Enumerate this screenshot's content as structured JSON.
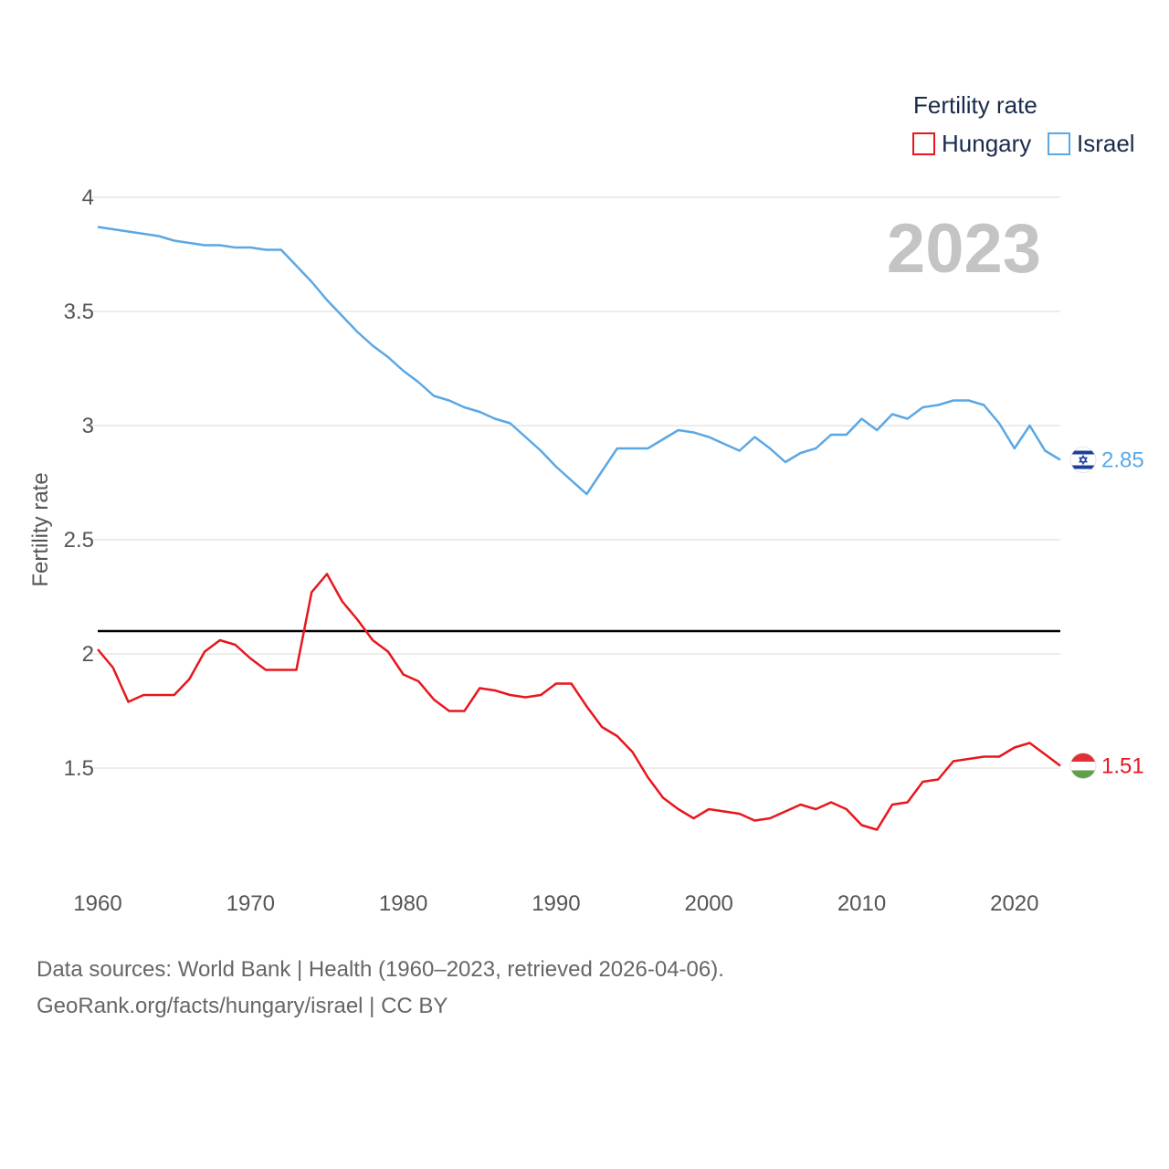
{
  "chart_data": {
    "type": "line",
    "ylabel": "Fertility rate",
    "xlabel": "",
    "ylim": [
      1.0,
      4.0
    ],
    "xlim": [
      1960,
      2023
    ],
    "y_ticks": [
      "1.5",
      "2",
      "2.5",
      "3",
      "3.5",
      "4"
    ],
    "y_tick_values": [
      1.5,
      2,
      2.5,
      3,
      3.5,
      4
    ],
    "x_ticks": [
      "1960",
      "1970",
      "1980",
      "1990",
      "2000",
      "2010",
      "2020"
    ],
    "x_tick_values": [
      1960,
      1970,
      1980,
      1990,
      2000,
      2010,
      2020
    ],
    "legend_title": "Fertility rate",
    "year_label": "2023",
    "reference_line": 2.1,
    "x": [
      1960,
      1961,
      1962,
      1963,
      1964,
      1965,
      1966,
      1967,
      1968,
      1969,
      1970,
      1971,
      1972,
      1973,
      1974,
      1975,
      1976,
      1977,
      1978,
      1979,
      1980,
      1981,
      1982,
      1983,
      1984,
      1985,
      1986,
      1987,
      1988,
      1989,
      1990,
      1991,
      1992,
      1993,
      1994,
      1995,
      1996,
      1997,
      1998,
      1999,
      2000,
      2001,
      2002,
      2003,
      2004,
      2005,
      2006,
      2007,
      2008,
      2009,
      2010,
      2011,
      2012,
      2013,
      2014,
      2015,
      2016,
      2017,
      2018,
      2019,
      2020,
      2021,
      2022,
      2023
    ],
    "series": [
      {
        "name": "Hungary",
        "color": "#e8161d",
        "end_label": "1.51",
        "flag": "hungary-flag",
        "values": [
          2.02,
          1.94,
          1.79,
          1.82,
          1.82,
          1.82,
          1.89,
          2.01,
          2.06,
          2.04,
          1.98,
          1.93,
          1.93,
          1.93,
          2.27,
          2.35,
          2.23,
          2.15,
          2.06,
          2.01,
          1.91,
          1.88,
          1.8,
          1.75,
          1.75,
          1.85,
          1.84,
          1.82,
          1.81,
          1.82,
          1.87,
          1.87,
          1.77,
          1.68,
          1.64,
          1.57,
          1.46,
          1.37,
          1.32,
          1.28,
          1.32,
          1.31,
          1.3,
          1.27,
          1.28,
          1.31,
          1.34,
          1.32,
          1.35,
          1.32,
          1.25,
          1.23,
          1.34,
          1.35,
          1.44,
          1.45,
          1.53,
          1.54,
          1.55,
          1.55,
          1.59,
          1.61,
          1.56,
          1.51
        ]
      },
      {
        "name": "Israel",
        "color": "#5ba7e4",
        "end_label": "2.85",
        "flag": "israel-flag",
        "values": [
          3.87,
          3.86,
          3.85,
          3.84,
          3.83,
          3.81,
          3.8,
          3.79,
          3.79,
          3.78,
          3.78,
          3.77,
          3.77,
          3.7,
          3.63,
          3.55,
          3.48,
          3.41,
          3.35,
          3.3,
          3.24,
          3.19,
          3.13,
          3.11,
          3.08,
          3.06,
          3.03,
          3.01,
          2.95,
          2.89,
          2.82,
          2.76,
          2.7,
          2.8,
          2.9,
          2.9,
          2.9,
          2.94,
          2.98,
          2.97,
          2.95,
          2.92,
          2.89,
          2.95,
          2.9,
          2.84,
          2.88,
          2.9,
          2.96,
          2.96,
          3.03,
          2.98,
          3.05,
          3.03,
          3.08,
          3.09,
          3.11,
          3.11,
          3.09,
          3.01,
          2.9,
          3.0,
          2.89,
          2.85
        ]
      }
    ]
  },
  "footer": {
    "line1": "Data sources: World Bank | Health (1960–2023, retrieved 2026-04-06).",
    "line2": "GeoRank.org/facts/hungary/israel | CC BY"
  }
}
